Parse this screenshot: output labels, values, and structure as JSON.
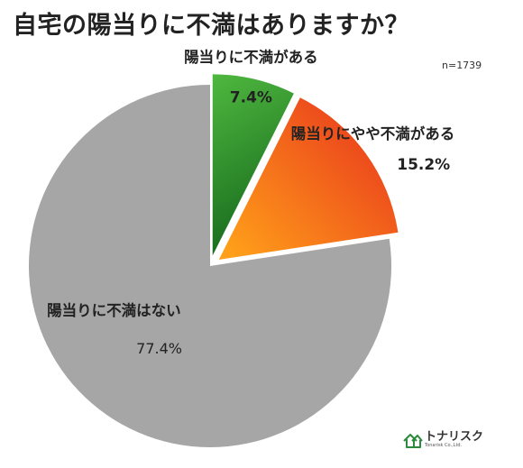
{
  "title": "自宅の陽当りに不満はありますか？",
  "sample_note": "n=1739",
  "chart_data": {
    "type": "pie",
    "categories": [
      "陽当りに不満がある",
      "陽当りにやや不満がある",
      "陽当りに不満はない"
    ],
    "values": [
      7.4,
      15.2,
      77.4
    ],
    "value_labels": [
      "7.4%",
      "15.2%",
      "77.4%"
    ],
    "exploded": [
      true,
      true,
      false
    ],
    "colors": [
      "#2f8a2c",
      "#f07a1c",
      "#a6a6a6"
    ],
    "legend": "none"
  },
  "logo": {
    "icon": "house-icon",
    "name": "トナリスク",
    "sub": "Tonarisk Co.,Ltd."
  }
}
